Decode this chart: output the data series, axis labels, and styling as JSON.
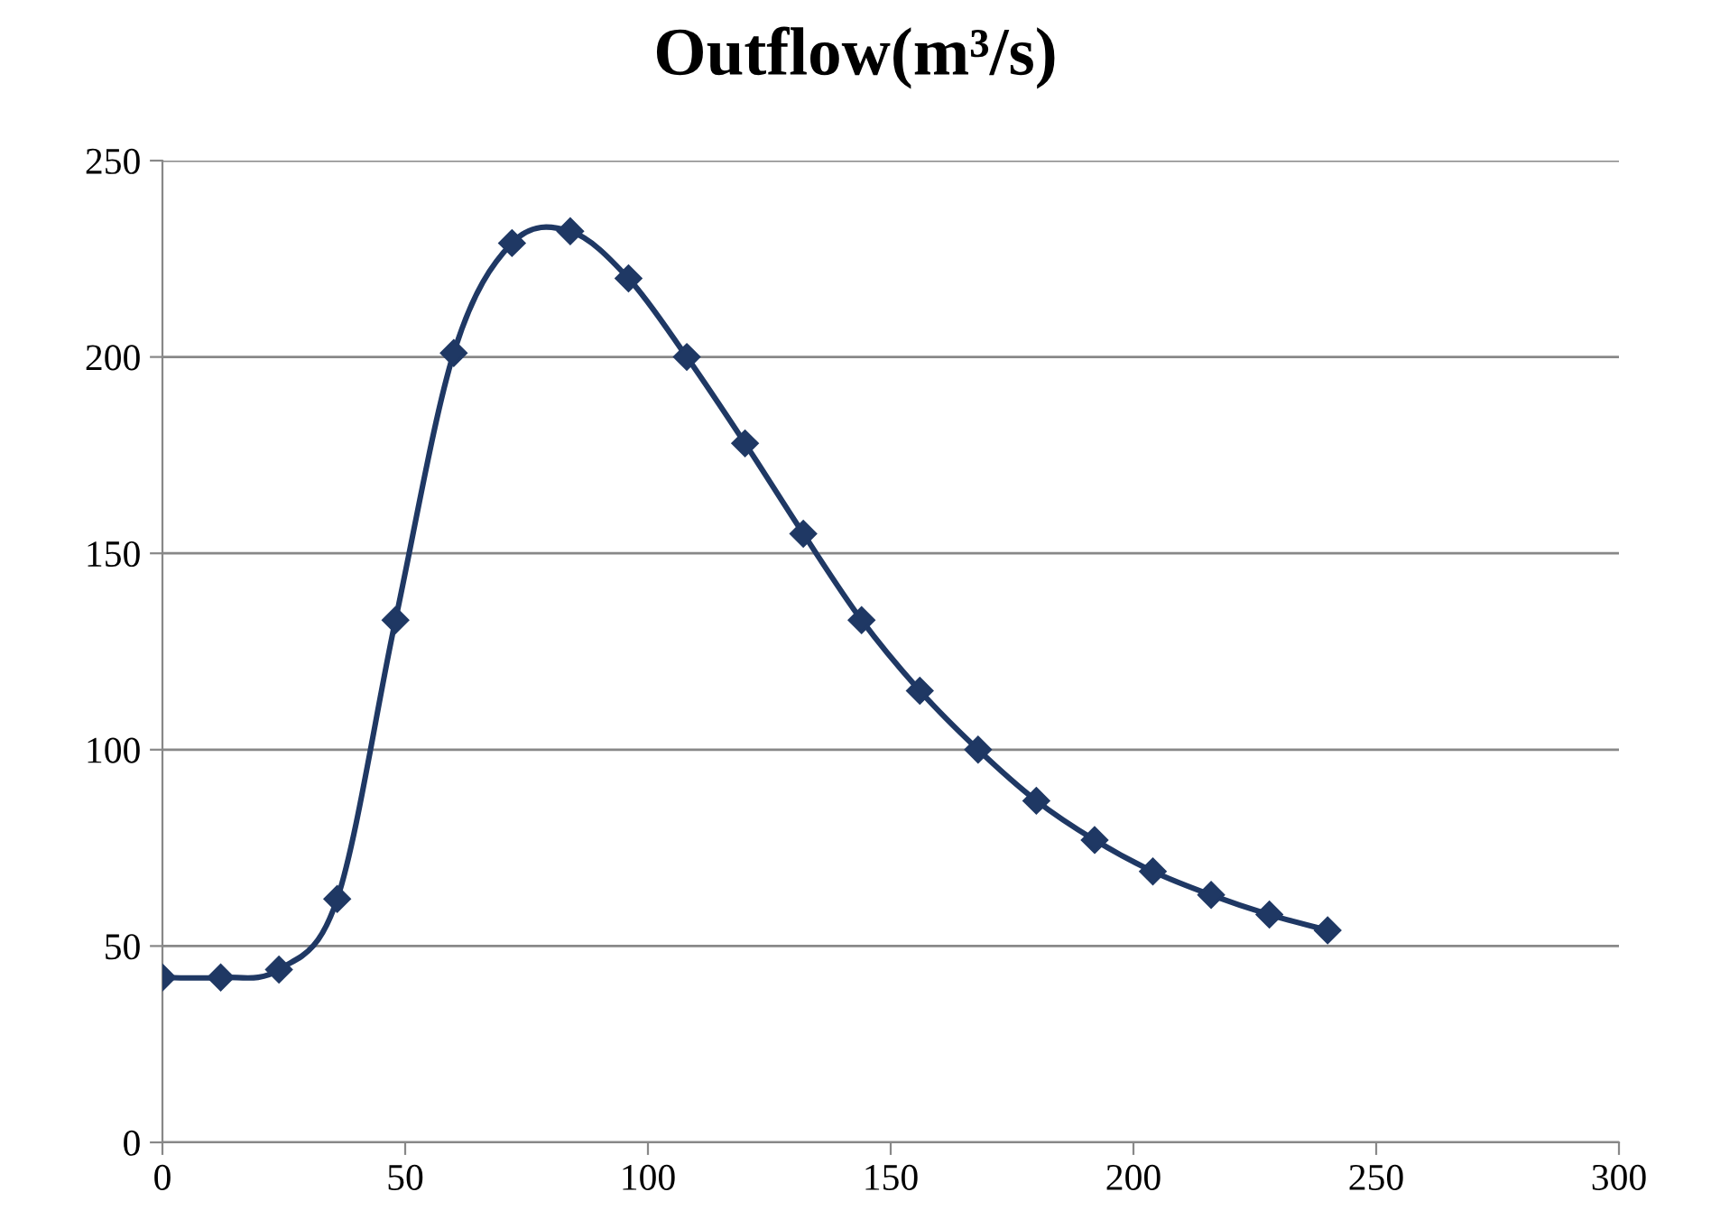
{
  "chart_data": {
    "type": "line",
    "title": "Outflow(m³/s)",
    "x": [
      0,
      12,
      24,
      36,
      48,
      60,
      72,
      84,
      96,
      108,
      120,
      132,
      144,
      156,
      168,
      180,
      192,
      204,
      216,
      228,
      240
    ],
    "series": [
      {
        "color": "#1f3864",
        "values": [
          42,
          42,
          44,
          62,
          133,
          201,
          229,
          232,
          220,
          200,
          178,
          155,
          133,
          115,
          100,
          87,
          77,
          69,
          63,
          58,
          54
        ]
      }
    ],
    "xlim": [
      0,
      300
    ],
    "xticks": [
      0,
      50,
      100,
      150,
      200,
      250,
      300
    ],
    "ylim": [
      0,
      250
    ],
    "yticks": [
      0,
      50,
      100,
      150,
      200,
      250
    ],
    "grid": "y",
    "marker": "diamond",
    "line_style": "solid",
    "legend": false
  }
}
